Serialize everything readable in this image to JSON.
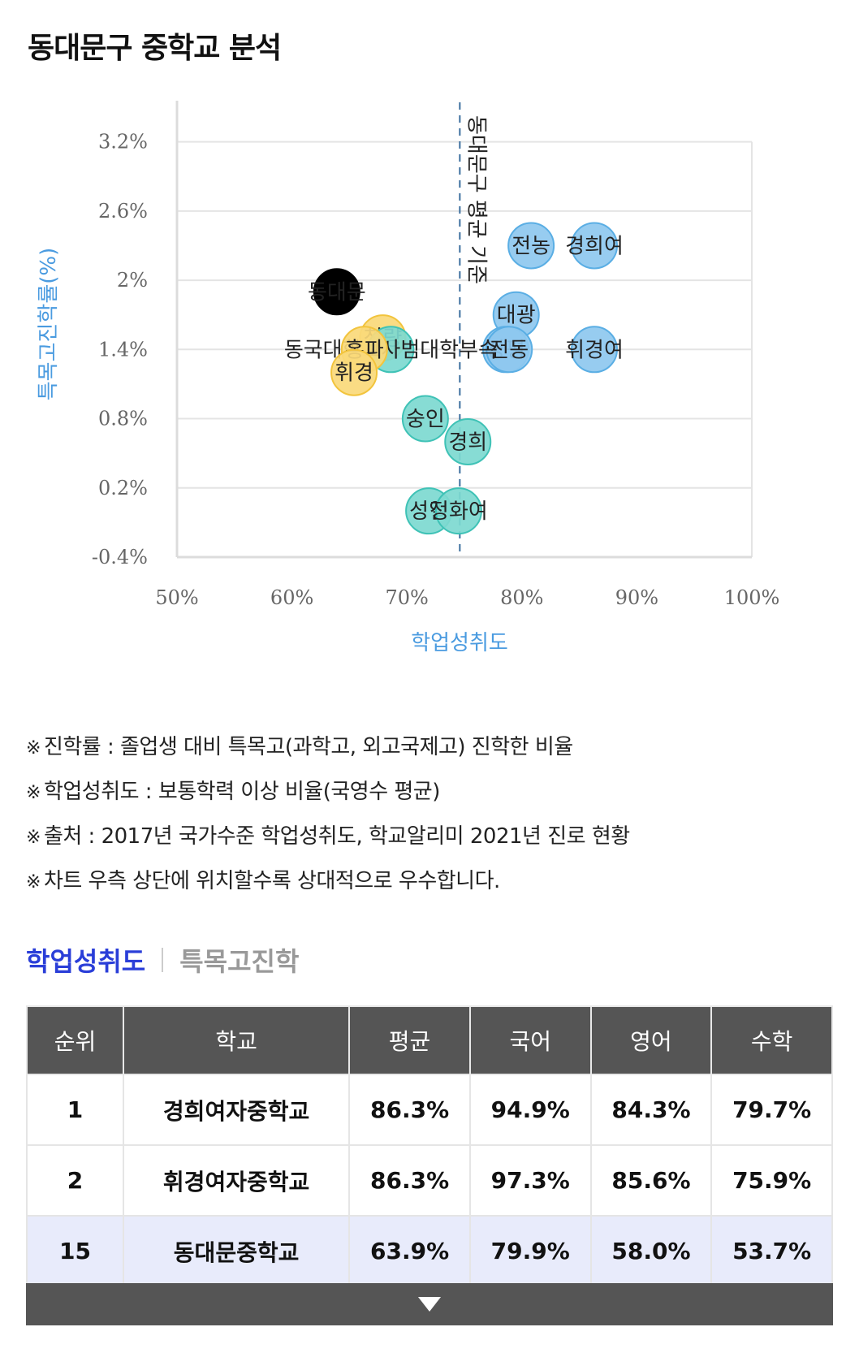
{
  "title": "동대문구 중학교 분석",
  "chart_data": {
    "type": "scatter",
    "xlabel": "학업성취도",
    "ylabel": "특목고진학률(%)",
    "xlim": [
      50,
      100
    ],
    "ylim": [
      -0.4,
      3.5
    ],
    "x_ticks": [
      "50%",
      "60%",
      "70%",
      "80%",
      "90%",
      "100%"
    ],
    "x_tick_values": [
      50,
      60,
      70,
      80,
      90,
      100
    ],
    "y_ticks": [
      "3.2%",
      "2.6%",
      "2%",
      "1.4%",
      "0.8%",
      "0.2%",
      "-0.4%"
    ],
    "y_tick_values": [
      3.2,
      2.6,
      2.0,
      1.4,
      0.8,
      0.2,
      -0.4
    ],
    "grid": true,
    "reference_line": {
      "label": "동대문구 평균 기준",
      "x": 74.6
    },
    "colors": {
      "blue": "#8ec8ef",
      "teal": "#7dd9d0",
      "yellow": "#fad97a",
      "black": "#000000"
    },
    "points": [
      {
        "label": "경희여",
        "x": 86.3,
        "y": 2.3,
        "color": "blue"
      },
      {
        "label": "전농",
        "x": 80.8,
        "y": 2.3,
        "color": "blue"
      },
      {
        "label": "대광",
        "x": 79.5,
        "y": 1.7,
        "color": "blue"
      },
      {
        "label": "휘경여",
        "x": 86.3,
        "y": 1.4,
        "color": "blue"
      },
      {
        "label": "장평",
        "x": 78.6,
        "y": 1.4,
        "color": "blue"
      },
      {
        "label": "전동",
        "x": 78.9,
        "y": 1.4,
        "color": "blue"
      },
      {
        "label": "청량",
        "x": 67.9,
        "y": 1.5,
        "color": "yellow"
      },
      {
        "label": "동국대학교사범대학부속",
        "x": 68.6,
        "y": 1.4,
        "color": "teal"
      },
      {
        "label": "홍파",
        "x": 66.3,
        "y": 1.4,
        "color": "yellow"
      },
      {
        "label": "휘경",
        "x": 65.4,
        "y": 1.2,
        "color": "yellow"
      },
      {
        "label": "숭인",
        "x": 71.6,
        "y": 0.8,
        "color": "teal"
      },
      {
        "label": "경희",
        "x": 75.3,
        "y": 0.6,
        "color": "teal"
      },
      {
        "label": "성일",
        "x": 71.9,
        "y": 0.0,
        "color": "teal"
      },
      {
        "label": "정화여",
        "x": 74.5,
        "y": 0.0,
        "color": "teal"
      },
      {
        "label": "동대문",
        "x": 63.9,
        "y": 1.9,
        "color": "black"
      }
    ]
  },
  "notes": [
    {
      "mark": "※",
      "text": "진학률 : 졸업생 대비 특목고(과학고, 외고국제고) 진학한 비율"
    },
    {
      "mark": "※",
      "text": "학업성취도 : 보통학력 이상 비율(국영수 평균)"
    },
    {
      "mark": "※",
      "text": "출처 : 2017년 국가수준 학업성취도, 학교알리미 2021년 진로 현황"
    },
    {
      "mark": "※",
      "text": "차트 우측 상단에 위치할수록 상대적으로 우수합니다."
    }
  ],
  "tabs": {
    "active": "학업성취도",
    "inactive": "특목고진학"
  },
  "table": {
    "headers": [
      "순위",
      "학교",
      "평균",
      "국어",
      "영어",
      "수학"
    ],
    "rows": [
      [
        "1",
        "경희여자중학교",
        "86.3%",
        "94.9%",
        "84.3%",
        "79.7%"
      ],
      [
        "2",
        "휘경여자중학교",
        "86.3%",
        "97.3%",
        "85.6%",
        "75.9%"
      ],
      [
        "15",
        "동대문중학교",
        "63.9%",
        "79.9%",
        "58.0%",
        "53.7%"
      ]
    ]
  }
}
